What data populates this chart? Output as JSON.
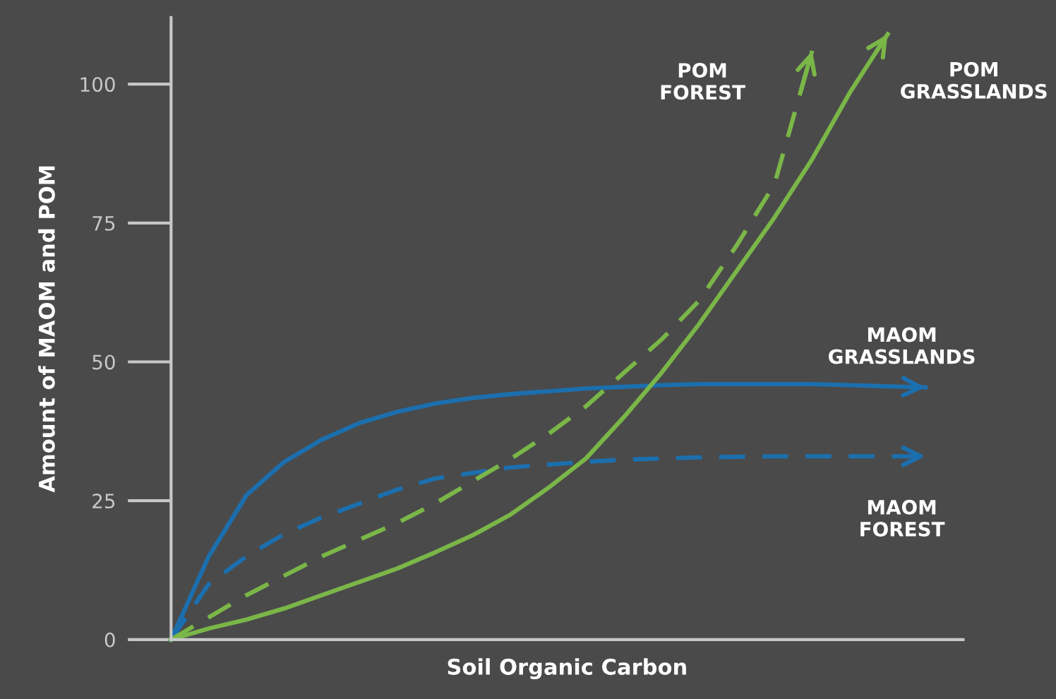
{
  "chart_data": {
    "type": "line",
    "xlabel": "Soil Organic Carbon",
    "ylabel": "Amount of MAOM and POM",
    "categories": [
      null,
      null,
      null,
      null,
      null,
      null,
      null,
      null,
      null,
      null,
      null,
      null,
      null,
      null,
      null,
      null,
      null,
      null,
      null,
      null,
      null
    ],
    "ylim": [
      0,
      112
    ],
    "yticks": [
      0,
      25,
      50,
      75,
      100
    ],
    "grid": false,
    "legend": false,
    "marker": "none",
    "series": [
      {
        "name": "MAOM\nGRASSLANDS",
        "color": "#1c6fae",
        "line_style": "solid",
        "values": [
          0,
          15,
          26,
          32,
          36,
          39,
          41,
          42.5,
          43.5,
          44.2,
          44.7,
          45.2,
          45.5,
          45.8,
          46,
          46,
          46,
          46,
          45.8,
          45.6,
          45.4
        ]
      },
      {
        "name": "MAOM\nFOREST",
        "color": "#1c6fae",
        "line_style": "dashed",
        "values": [
          0,
          10,
          15,
          19,
          22,
          24.5,
          27,
          29,
          30,
          31,
          31.5,
          32,
          32.4,
          32.6,
          32.8,
          32.9,
          33,
          33,
          33,
          33,
          33
        ]
      },
      {
        "name": "POM\nGRASSLANDS",
        "color": "#7ab648",
        "line_style": "solid",
        "values": [
          0,
          2,
          3.6,
          5.6,
          8,
          10.4,
          12.8,
          15.7,
          18.8,
          22.5,
          27.3,
          32.6,
          40,
          48,
          56.8,
          66.4,
          76,
          86.5,
          98.5,
          109,
          null
        ]
      },
      {
        "name": "POM\nFOREST",
        "color": "#7ab648",
        "line_style": "dashed",
        "values": [
          0,
          4,
          8,
          11.5,
          15,
          18,
          21,
          24.5,
          28.5,
          32.5,
          37,
          42,
          48,
          54,
          61,
          71,
          82,
          106,
          null,
          null,
          null
        ]
      }
    ]
  }
}
